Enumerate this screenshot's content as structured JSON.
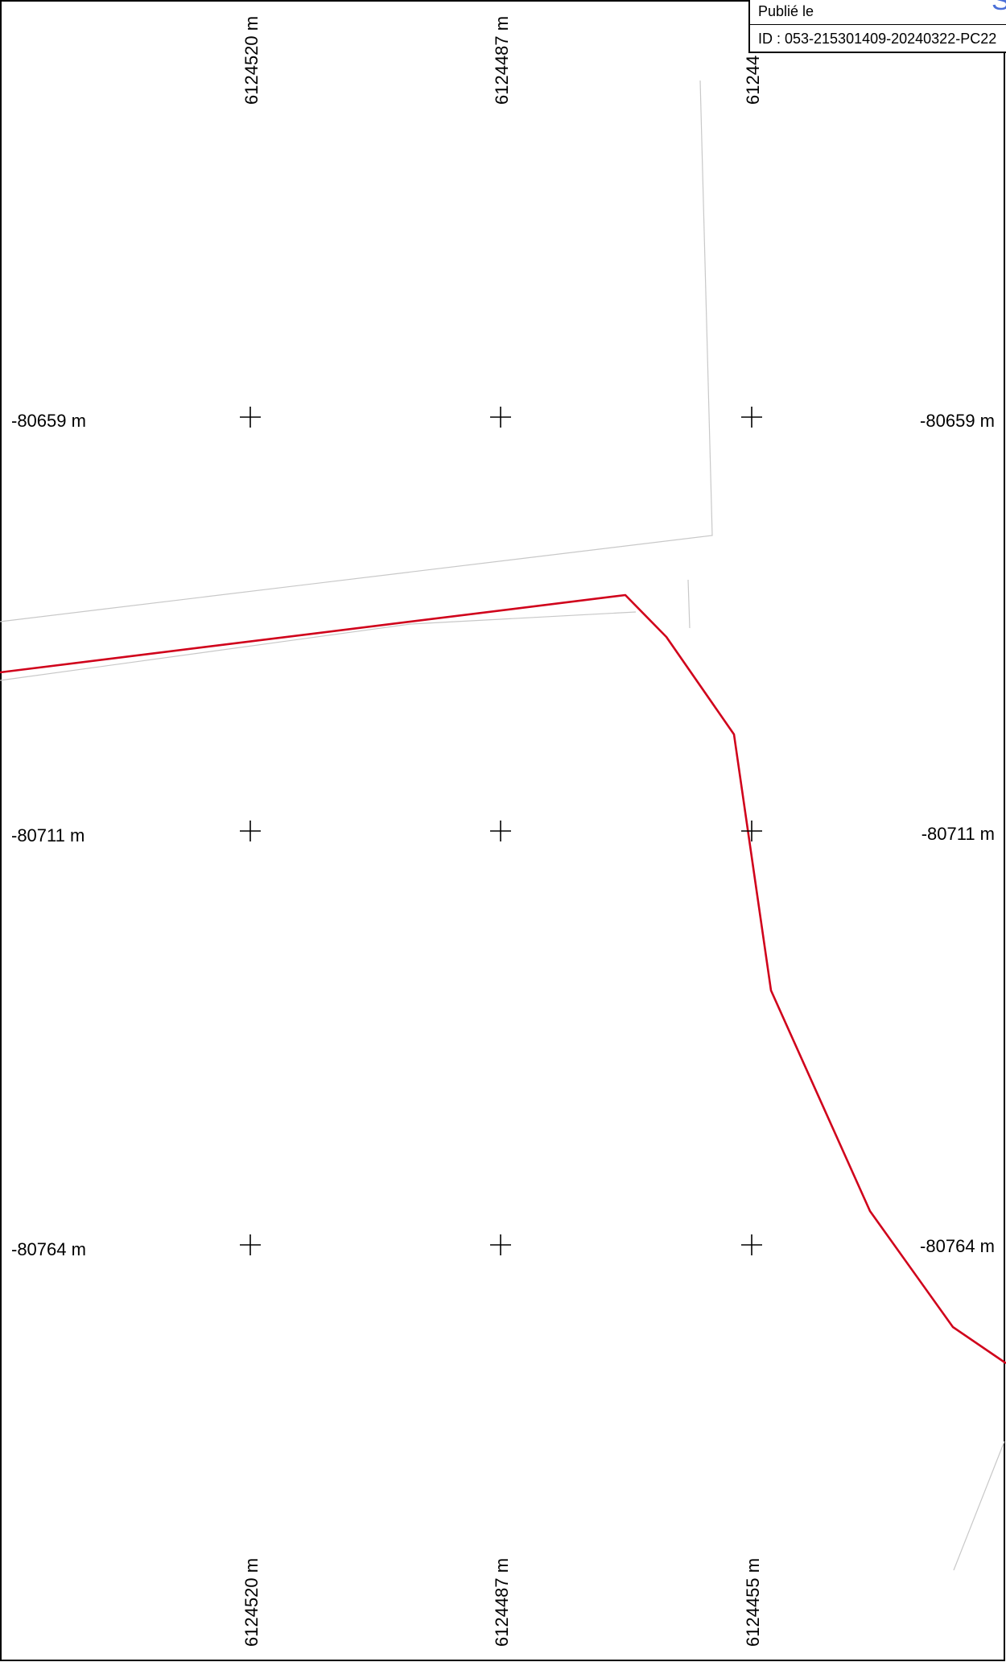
{
  "stamp": {
    "published_label": "Publié le",
    "id_text": "ID : 053-215301409-20240322-PC22"
  },
  "grid": {
    "top_labels": [
      "6124520 m",
      "6124487 m",
      "61244"
    ],
    "bottom_labels": [
      "6124520 m",
      "6124487 m",
      "6124455 m"
    ],
    "rows": [
      {
        "left": "-80659 m",
        "right": "-80659 m"
      },
      {
        "left": "-80711 m",
        "right": "-80711 m"
      },
      {
        "left": "-80764 m",
        "right": "-80764 m"
      }
    ]
  },
  "colors": {
    "parcel_boundary": "#d0021b",
    "faint_lines": "#c8c8c8",
    "stamp_mark": "#4a6fd8"
  }
}
